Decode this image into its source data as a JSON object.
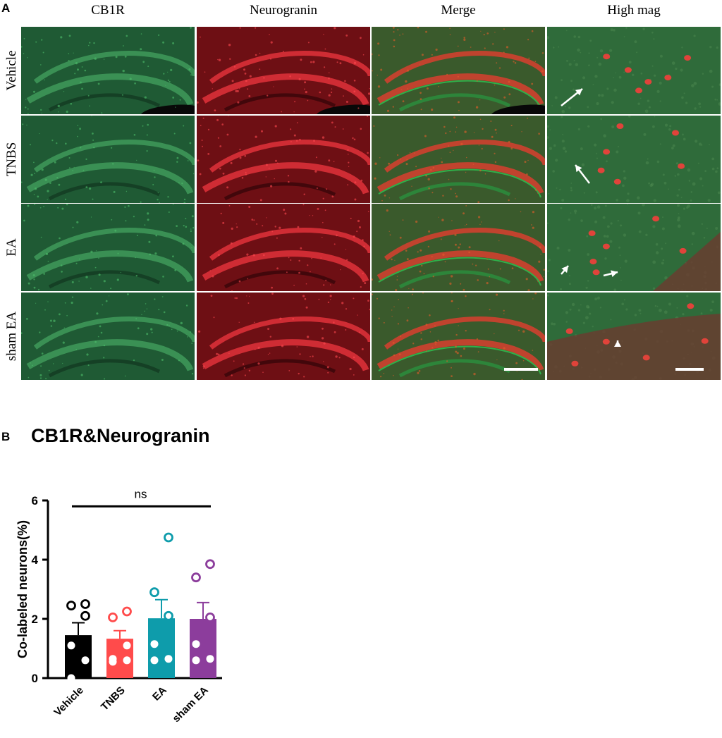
{
  "panel_a": {
    "letter": "A",
    "columns": [
      "CB1R",
      "Neurogranin",
      "Merge",
      "High mag"
    ],
    "rows": [
      "Vehicle",
      "TNBS",
      "EA",
      "sham EA"
    ],
    "colors": {
      "cb1r_green": "#1f5a34",
      "neurogranin_red": "#6e0f14",
      "merge_bg": "#3a5a2c",
      "arrow": "#ffffff",
      "scale_bar": "#ffffff"
    }
  },
  "panel_b": {
    "letter": "B",
    "title": "CB1R&Neurogranin"
  },
  "chart_data": {
    "type": "bar",
    "title": "CB1R&Neurogranin",
    "ylabel": "Co-labeled neurons(%)",
    "xlabel": "",
    "ylim": [
      0,
      6
    ],
    "yticks": [
      "0",
      "2",
      "4",
      "6"
    ],
    "categories": [
      "Vehicle",
      "TNBS",
      "EA",
      "sham EA"
    ],
    "values": [
      1.45,
      1.33,
      2.02,
      2.0
    ],
    "errors": [
      0.42,
      0.27,
      0.63,
      0.55
    ],
    "colors": [
      "#000000",
      "#ff4b4b",
      "#0e9cab",
      "#8c3d9c"
    ],
    "points": [
      [
        0.0,
        0.6,
        1.1,
        2.1,
        2.45,
        2.5
      ],
      [
        0.55,
        0.6,
        0.65,
        1.1,
        2.05,
        2.25
      ],
      [
        0.6,
        0.65,
        1.15,
        2.1,
        2.9,
        4.75
      ],
      [
        0.6,
        0.65,
        1.15,
        2.05,
        3.4,
        3.85
      ]
    ],
    "annotation": {
      "text": "ns",
      "from": "Vehicle",
      "to": "sham EA",
      "y": 5.8
    },
    "grid": false,
    "legend": "none"
  }
}
